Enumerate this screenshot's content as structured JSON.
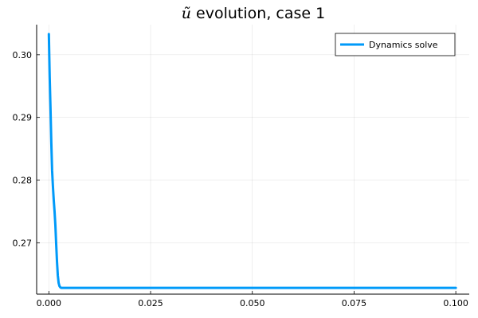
{
  "chart_data": {
    "type": "line",
    "title": "ũ evolution, case 1",
    "title_italic_symbol": "ũ",
    "title_rest": " evolution, case 1",
    "xlim": [
      -0.003,
      0.1033
    ],
    "ylim": [
      0.2618,
      0.3048
    ],
    "x_ticks": [
      0.0,
      0.025,
      0.05,
      0.075,
      0.1
    ],
    "x_tick_labels": [
      "0.000",
      "0.025",
      "0.050",
      "0.075",
      "0.100"
    ],
    "y_ticks": [
      0.27,
      0.28,
      0.29,
      0.3
    ],
    "y_tick_labels": [
      "0.27",
      "0.28",
      "0.29",
      "0.30"
    ],
    "grid": true,
    "legend_position": "top-right",
    "series": [
      {
        "name": "Dynamics solve",
        "color": "#009af9",
        "x": [
          0.0,
          0.0002,
          0.0004,
          0.0006,
          0.0008,
          0.001,
          0.0012,
          0.0014,
          0.0016,
          0.0018,
          0.002,
          0.0022,
          0.0024,
          0.0026,
          0.0028,
          0.003,
          0.0035,
          0.004,
          0.006,
          0.01,
          0.02,
          0.05,
          0.1
        ],
        "y": [
          0.3033,
          0.2965,
          0.2915,
          0.286,
          0.2815,
          0.279,
          0.2768,
          0.275,
          0.2728,
          0.2698,
          0.267,
          0.2648,
          0.2636,
          0.2631,
          0.2629,
          0.2628,
          0.2628,
          0.2628,
          0.2628,
          0.2628,
          0.2628,
          0.2628,
          0.2628
        ]
      }
    ]
  }
}
